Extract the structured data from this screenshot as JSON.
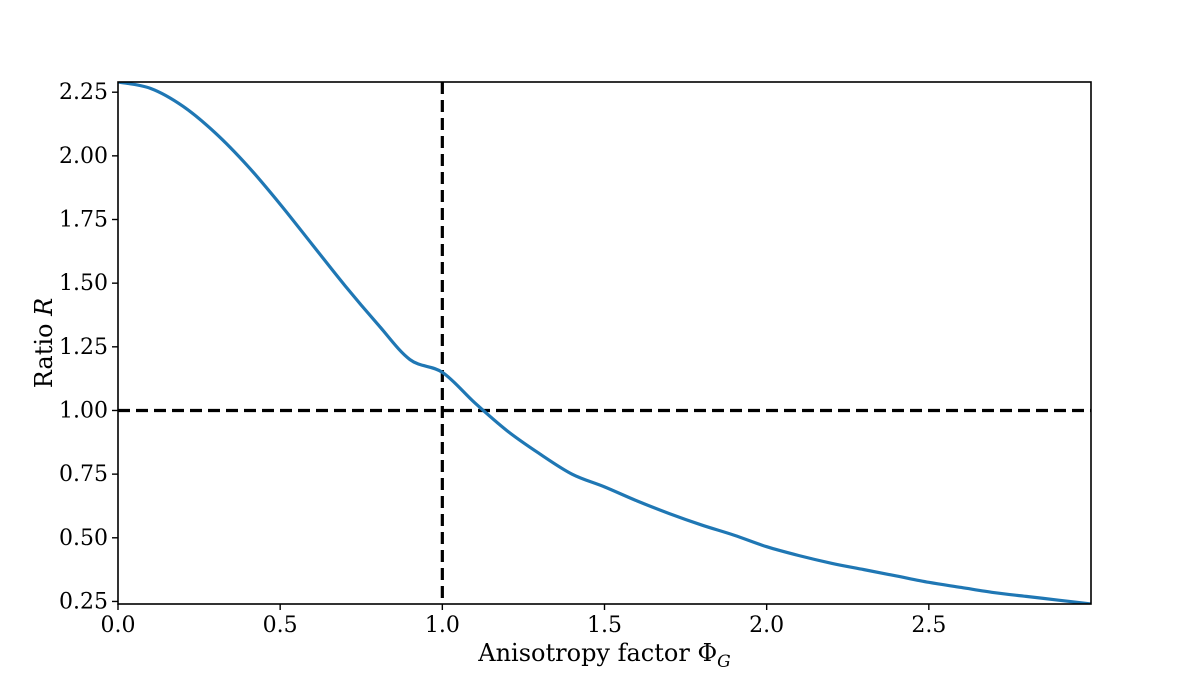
{
  "chart_data": {
    "type": "line",
    "title": "",
    "xlabel": "Anisotropy factor Φ",
    "xlabel_sub": "G",
    "ylabel": "Ratio ",
    "ylabel_var": "R",
    "xlim": [
      0.0,
      3.0
    ],
    "ylim": [
      0.24,
      2.29
    ],
    "x_ticks": [
      0.0,
      0.5,
      1.0,
      1.5,
      2.0,
      2.5
    ],
    "x_tick_labels": [
      "0.0",
      "0.5",
      "1.0",
      "1.5",
      "2.0",
      "2.5"
    ],
    "y_ticks": [
      0.25,
      0.5,
      0.75,
      1.0,
      1.25,
      1.5,
      1.75,
      2.0,
      2.25
    ],
    "y_tick_labels": [
      "0.25",
      "0.50",
      "0.75",
      "1.00",
      "1.25",
      "1.50",
      "1.75",
      "2.00",
      "2.25"
    ],
    "grid": false,
    "series": [
      {
        "color": "#1f77b4",
        "x": [
          0.0,
          0.1,
          0.2,
          0.3,
          0.4,
          0.5,
          0.6,
          0.7,
          0.8,
          0.9,
          1.0,
          1.1,
          1.2,
          1.3,
          1.4,
          1.5,
          1.6,
          1.7,
          1.8,
          1.9,
          2.0,
          2.1,
          2.2,
          2.3,
          2.4,
          2.5,
          2.6,
          2.7,
          2.8,
          2.9,
          3.0
        ],
        "y": [
          2.29,
          2.265,
          2.195,
          2.09,
          1.96,
          1.81,
          1.65,
          1.49,
          1.34,
          1.2,
          1.15,
          1.03,
          0.92,
          0.83,
          0.75,
          0.7,
          0.645,
          0.595,
          0.55,
          0.51,
          0.465,
          0.43,
          0.4,
          0.375,
          0.35,
          0.325,
          0.305,
          0.285,
          0.27,
          0.255,
          0.24
        ]
      }
    ],
    "reference_lines": [
      {
        "orientation": "vertical",
        "value": 1.0,
        "style": "dashed",
        "color": "#000000"
      },
      {
        "orientation": "horizontal",
        "value": 1.0,
        "style": "dashed",
        "color": "#000000"
      }
    ]
  }
}
